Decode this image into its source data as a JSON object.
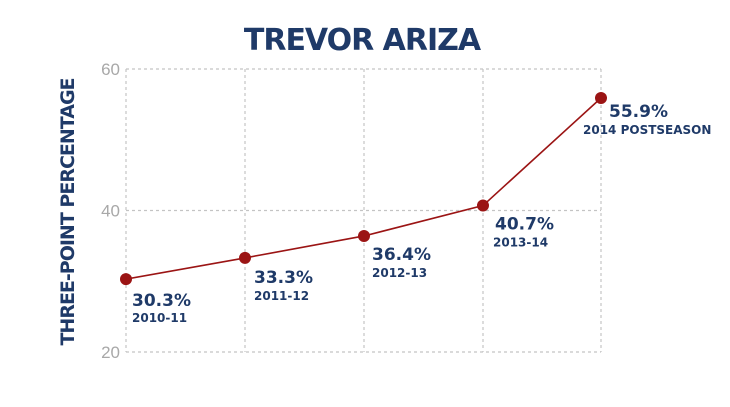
{
  "chart_data": {
    "type": "line",
    "title": "TREVOR ARIZA",
    "ylabel": "THREE-POINT PERCENTAGE",
    "xlabel": "",
    "ylim": [
      20,
      60
    ],
    "yticks": [
      "20",
      "40",
      "60"
    ],
    "grid": true,
    "color": "#9b1414",
    "points": [
      {
        "category": "2010-11",
        "value": 30.3,
        "label": "30.3%"
      },
      {
        "category": "2011-12",
        "value": 33.3,
        "label": "33.3%"
      },
      {
        "category": "2012-13",
        "value": 36.4,
        "label": "36.4%"
      },
      {
        "category": "2013-14",
        "value": 40.7,
        "label": "40.7%"
      },
      {
        "category": "2014 POSTSEASON",
        "value": 55.9,
        "label": "55.9%"
      }
    ]
  }
}
